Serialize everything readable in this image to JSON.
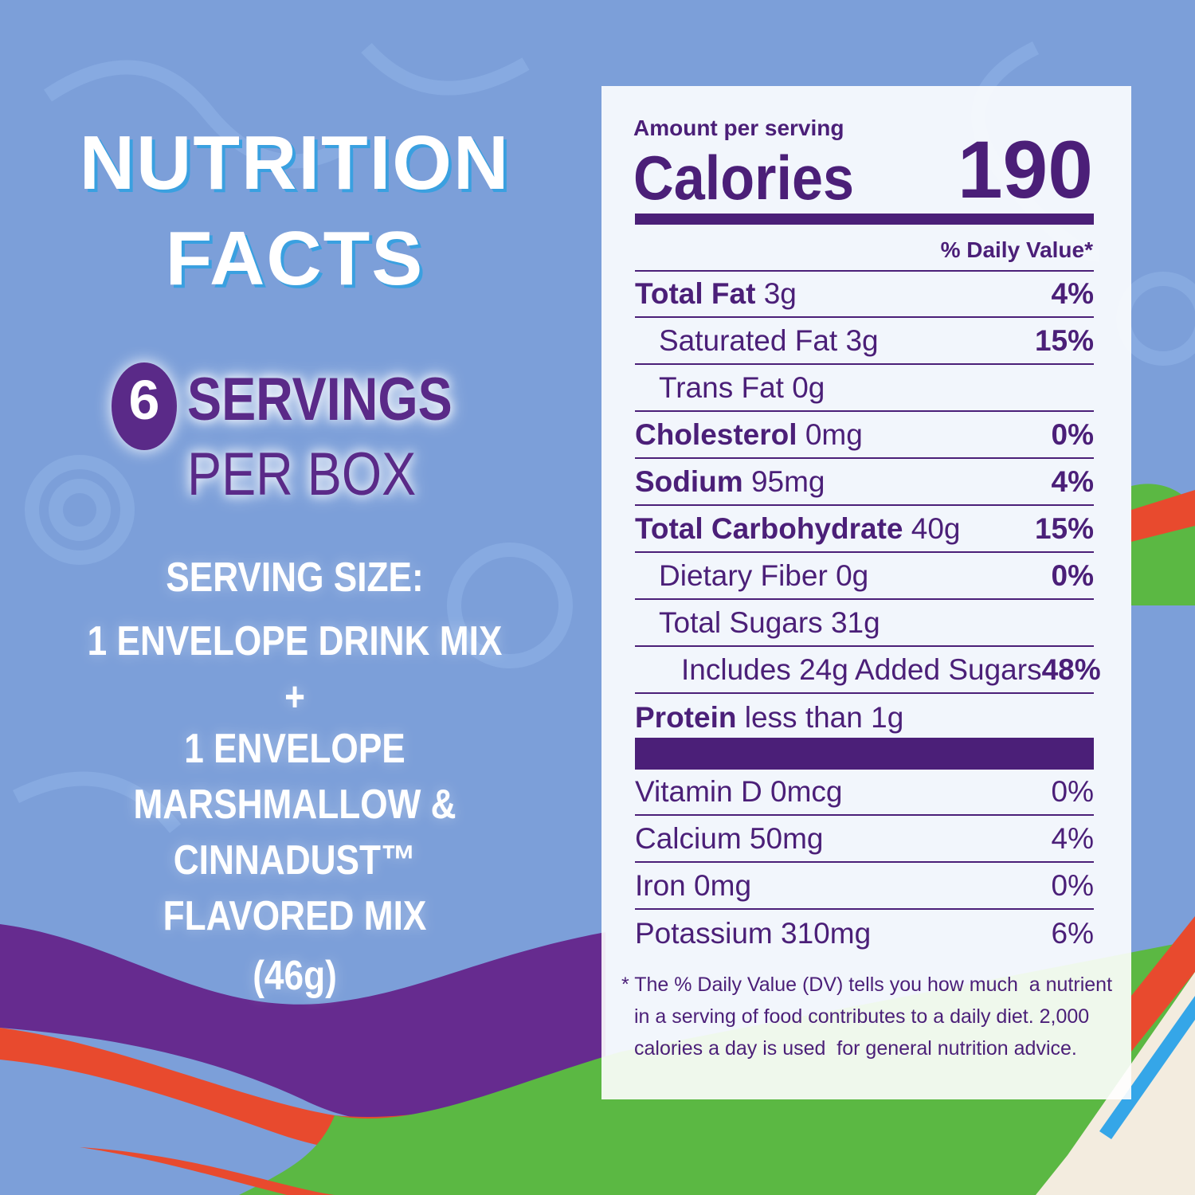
{
  "left": {
    "title_line1": "NUTRITION",
    "title_line2": "FACTS",
    "servings_number": "6",
    "servings_line1": "SERVINGS",
    "servings_line2": "PER BOX",
    "serving_size_label": "SERVING SIZE:",
    "serving_size_lines": [
      "1 ENVELOPE DRINK MIX",
      "+",
      "1 ENVELOPE",
      "MARSHMALLOW &",
      "CINNADUST™",
      "FLAVORED MIX",
      "(46g)"
    ]
  },
  "label": {
    "amount_per_serving": "Amount per serving",
    "calories_label": "Calories",
    "calories_value": "190",
    "daily_value_header": "% Daily Value*",
    "nutrients": [
      {
        "name": "Total Fat",
        "amount": "3g",
        "dv": "4%"
      },
      {
        "name": "Saturated Fat",
        "amount": "3g",
        "dv": "15%"
      },
      {
        "name": "Trans Fat",
        "amount": "0g"
      },
      {
        "name": "Cholesterol",
        "amount": "0mg",
        "dv": "0%"
      },
      {
        "name": "Sodium",
        "amount": "95mg",
        "dv": "4%"
      },
      {
        "name": "Total Carbohydrate",
        "amount": "40g",
        "dv": "15%"
      },
      {
        "name": "Dietary Fiber",
        "amount": "0g",
        "dv": "0%"
      },
      {
        "name": "Total Sugars",
        "amount": "31g"
      },
      {
        "name": "Includes 24g Added Sugars",
        "dv": "48%"
      },
      {
        "name": "Protein",
        "amount": "less than 1g"
      }
    ],
    "vitamins": [
      {
        "name": "Vitamin D",
        "amount": "0mcg",
        "dv": "0%"
      },
      {
        "name": "Calcium",
        "amount": "50mg",
        "dv": "4%"
      },
      {
        "name": "Iron",
        "amount": "0mg",
        "dv": "0%"
      },
      {
        "name": "Potassium",
        "amount": "310mg",
        "dv": "6%"
      }
    ],
    "footnote_lines": [
      "* The % Daily Value (DV) tells you how much  a nutrient",
      "in a serving of food contributes to a daily diet. 2,000",
      "calories a day is used  for general nutrition advice."
    ]
  }
}
